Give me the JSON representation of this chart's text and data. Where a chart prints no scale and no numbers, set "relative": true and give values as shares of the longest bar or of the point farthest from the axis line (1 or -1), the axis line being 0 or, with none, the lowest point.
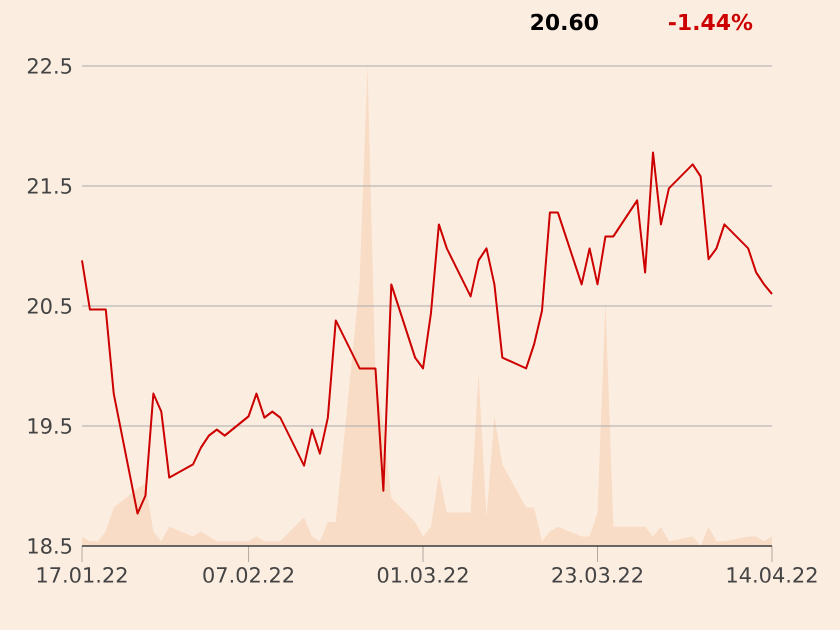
{
  "chart_data": [
    {
      "type": "area",
      "relative": true,
      "color": "#f8dcc5",
      "x": [
        "2022-01-17",
        "2022-01-18",
        "2022-01-19",
        "2022-01-20",
        "2022-01-21",
        "2022-01-24",
        "2022-01-25",
        "2022-01-26",
        "2022-01-27",
        "2022-01-28",
        "2022-01-31",
        "2022-02-01",
        "2022-02-02",
        "2022-02-03",
        "2022-02-04",
        "2022-02-07",
        "2022-02-08",
        "2022-02-09",
        "2022-02-10",
        "2022-02-11",
        "2022-02-14",
        "2022-02-15",
        "2022-02-16",
        "2022-02-17",
        "2022-02-18",
        "2022-02-21",
        "2022-02-22",
        "2022-02-23",
        "2022-02-24",
        "2022-02-25",
        "2022-02-28",
        "2022-03-01",
        "2022-03-02",
        "2022-03-03",
        "2022-03-04",
        "2022-03-07",
        "2022-03-08",
        "2022-03-09",
        "2022-03-10",
        "2022-03-11",
        "2022-03-14",
        "2022-03-15",
        "2022-03-16",
        "2022-03-17",
        "2022-03-18",
        "2022-03-21",
        "2022-03-22",
        "2022-03-23",
        "2022-03-24",
        "2022-03-25",
        "2022-03-28",
        "2022-03-29",
        "2022-03-30",
        "2022-03-31",
        "2022-04-01",
        "2022-04-04",
        "2022-04-05",
        "2022-04-06",
        "2022-04-07",
        "2022-04-08",
        "2022-04-11",
        "2022-04-12",
        "2022-04-13",
        "2022-04-14"
      ],
      "values": [
        0.02,
        0.01,
        0.01,
        0.03,
        0.08,
        0.12,
        0.13,
        0.03,
        0.01,
        0.04,
        0.02,
        0.03,
        0.02,
        0.01,
        0.01,
        0.01,
        0.02,
        0.01,
        0.01,
        0.01,
        0.06,
        0.02,
        0.01,
        0.05,
        0.05,
        0.55,
        1.0,
        0.35,
        0.25,
        0.1,
        0.05,
        0.02,
        0.04,
        0.15,
        0.07,
        0.07,
        0.36,
        0.06,
        0.27,
        0.17,
        0.08,
        0.08,
        0.01,
        0.03,
        0.04,
        0.02,
        0.02,
        0.07,
        0.51,
        0.04,
        0.04,
        0.04,
        0.02,
        0.04,
        0.01,
        0.02,
        0.0,
        0.04,
        0.01,
        0.01,
        0.02,
        0.02,
        0.01,
        0.02
      ],
      "xlim": [
        "2022-01-17",
        "2022-04-14"
      ]
    },
    {
      "type": "line",
      "color": "#cc0000",
      "annotations": [
        "20.60",
        "-1.44%"
      ],
      "x": [
        "2022-01-17",
        "2022-01-18",
        "2022-01-19",
        "2022-01-20",
        "2022-01-21",
        "2022-01-24",
        "2022-01-25",
        "2022-01-26",
        "2022-01-27",
        "2022-01-28",
        "2022-01-31",
        "2022-02-01",
        "2022-02-02",
        "2022-02-03",
        "2022-02-04",
        "2022-02-07",
        "2022-02-08",
        "2022-02-09",
        "2022-02-10",
        "2022-02-11",
        "2022-02-14",
        "2022-02-15",
        "2022-02-16",
        "2022-02-17",
        "2022-02-18",
        "2022-02-21",
        "2022-02-22",
        "2022-02-23",
        "2022-02-24",
        "2022-02-25",
        "2022-02-28",
        "2022-03-01",
        "2022-03-02",
        "2022-03-03",
        "2022-03-04",
        "2022-03-07",
        "2022-03-08",
        "2022-03-09",
        "2022-03-10",
        "2022-03-11",
        "2022-03-14",
        "2022-03-15",
        "2022-03-16",
        "2022-03-17",
        "2022-03-18",
        "2022-03-21",
        "2022-03-22",
        "2022-03-23",
        "2022-03-24",
        "2022-03-25",
        "2022-03-28",
        "2022-03-29",
        "2022-03-30",
        "2022-03-31",
        "2022-04-01",
        "2022-04-04",
        "2022-04-05",
        "2022-04-06",
        "2022-04-07",
        "2022-04-08",
        "2022-04-11",
        "2022-04-12",
        "2022-04-13",
        "2022-04-14"
      ],
      "values": [
        20.88,
        20.47,
        20.47,
        20.47,
        19.77,
        18.77,
        18.92,
        19.77,
        19.62,
        19.07,
        19.18,
        19.32,
        19.42,
        19.47,
        19.42,
        19.58,
        19.77,
        19.57,
        19.62,
        19.57,
        19.17,
        19.47,
        19.27,
        19.57,
        20.38,
        19.98,
        19.98,
        19.98,
        18.96,
        20.68,
        20.07,
        19.98,
        20.44,
        21.18,
        20.98,
        20.58,
        20.88,
        20.98,
        20.68,
        20.07,
        19.98,
        20.18,
        20.46,
        21.28,
        21.28,
        20.68,
        20.98,
        20.68,
        21.08,
        21.08,
        21.38,
        20.78,
        21.78,
        21.18,
        21.48,
        21.68,
        21.58,
        20.89,
        20.98,
        21.18,
        20.98,
        20.78,
        20.68,
        20.6
      ],
      "xlim": [
        "2022-01-17",
        "2022-04-14"
      ],
      "xticks": [
        {
          "value": "2022-01-17",
          "label": "17.01.22"
        },
        {
          "value": "2022-02-07",
          "label": "07.02.22"
        },
        {
          "value": "2022-03-01",
          "label": "01.03.22"
        },
        {
          "value": "2022-03-23",
          "label": "23.03.22"
        },
        {
          "value": "2022-04-14",
          "label": "14.04.22"
        }
      ],
      "ylim": [
        18.5,
        22.5
      ],
      "yticks": [
        18.5,
        19.5,
        20.5,
        21.5,
        22.5
      ],
      "grid": "y"
    }
  ]
}
